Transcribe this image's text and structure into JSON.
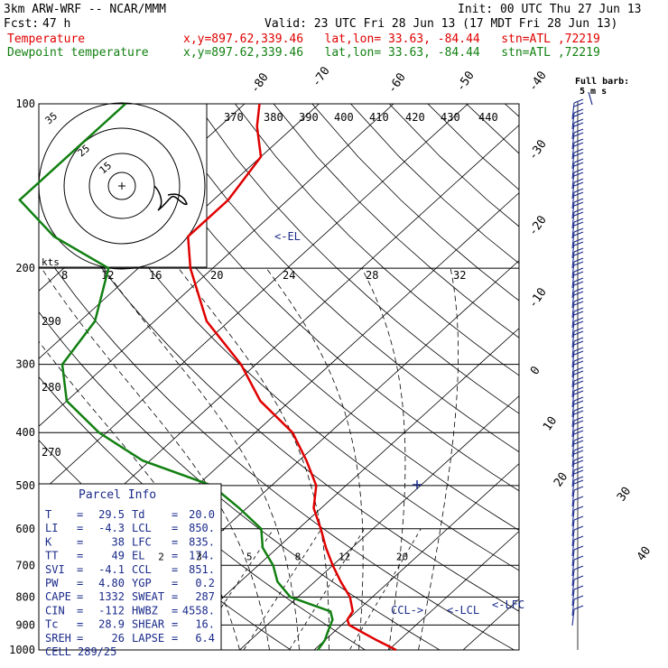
{
  "header": {
    "model": "3km ARW-WRF -- NCAR/MMM",
    "init": "Init: 00 UTC Thu 27 Jun 13",
    "fcst_label": "Fcst:",
    "fcst_value": "47 h",
    "valid": "Valid: 23 UTC Fri 28 Jun 13 (17 MDT Fri 28 Jun 13)",
    "temp_label": "Temperature",
    "dew_label": "Dewpoint temperature",
    "temp_info": "x,y=897.62,339.46   lat,lon= 33.63, -84.44   stn=ATL ,72219",
    "dew_info": "x,y=897.62,339.46   lat,lon= 33.63, -84.44   stn=ATL ,72219"
  },
  "parcel": {
    "title": "Parcel Info",
    "rows": [
      [
        "T",
        "29.5",
        "Td",
        "20.0"
      ],
      [
        "LI",
        "-4.3",
        "LCL",
        "850."
      ],
      [
        "K",
        "38",
        "LFC",
        "835."
      ],
      [
        "TT",
        "49",
        "EL",
        "174."
      ],
      [
        "SVI",
        "-4.1",
        "CCL",
        "851."
      ],
      [
        "PW",
        "4.80",
        "YGP",
        "0.2"
      ],
      [
        "CAPE",
        "1332",
        "SWEAT",
        "287"
      ],
      [
        "CIN",
        "-112",
        "HWBZ",
        "4558."
      ],
      [
        "Tc",
        "28.9",
        "SHEAR",
        "16."
      ],
      [
        "SREH",
        "26",
        "LAPSE",
        "6.4"
      ],
      [
        "CELL",
        "289/25",
        "",
        ""
      ]
    ]
  },
  "barb_legend": {
    "title": "Full barb:",
    "sub": "5 m s"
  },
  "hodograph": {
    "ring_labels": [
      "35",
      "25",
      "15"
    ],
    "axis_label": "kts",
    "speed_labels": [
      "8",
      "12",
      "16",
      "20",
      "24",
      "28",
      "32"
    ]
  },
  "annotations": {
    "el": "<-EL",
    "ccl": "CCL->",
    "lcl": "<-LCL",
    "lfc": "<-LFC"
  },
  "colors": {
    "temperature": "#e00000",
    "dewpoint": "#128012",
    "axes": "#000000",
    "blue": "#1a2a8a"
  },
  "chart_data": {
    "type": "line",
    "title": "",
    "ylabel": "",
    "xlabel": "",
    "pressure_ticks": [
      100,
      200,
      300,
      400,
      500,
      600,
      700,
      800,
      900,
      1000
    ],
    "isotherm_labels": [
      "-80",
      "-70",
      "-60",
      "-50",
      "-40",
      "-30",
      "-20",
      "-10",
      "0",
      "10",
      "20",
      "30",
      "40"
    ],
    "theta_labels": [
      "370",
      "380",
      "390",
      "400",
      "410",
      "420",
      "430",
      "440"
    ],
    "theta_side_labels": [
      "290",
      "280",
      "270"
    ],
    "mixing_ratio_labels": [
      "2",
      "3",
      "5",
      "8",
      "12",
      "20"
    ],
    "series": [
      {
        "name": "Temperature",
        "points": [
          [
            1000,
            31
          ],
          [
            960,
            27
          ],
          [
            930,
            24
          ],
          [
            900,
            21
          ],
          [
            880,
            20
          ],
          [
            850,
            19.5
          ],
          [
            800,
            17
          ],
          [
            750,
            13.5
          ],
          [
            700,
            10
          ],
          [
            650,
            6.5
          ],
          [
            600,
            3
          ],
          [
            550,
            -1
          ],
          [
            500,
            -4
          ],
          [
            450,
            -9
          ],
          [
            400,
            -15
          ],
          [
            350,
            -24
          ],
          [
            300,
            -32
          ],
          [
            250,
            -43
          ],
          [
            200,
            -53
          ],
          [
            175,
            -58
          ],
          [
            150,
            -58
          ],
          [
            125,
            -60
          ],
          [
            110,
            -65
          ],
          [
            100,
            -68
          ]
        ]
      },
      {
        "name": "Dewpoint temperature",
        "points": [
          [
            1000,
            20.5
          ],
          [
            960,
            20
          ],
          [
            920,
            19
          ],
          [
            880,
            18
          ],
          [
            850,
            16.5
          ],
          [
            800,
            9
          ],
          [
            750,
            5
          ],
          [
            700,
            2
          ],
          [
            650,
            -2
          ],
          [
            600,
            -5
          ],
          [
            550,
            -11
          ],
          [
            500,
            -18
          ],
          [
            450,
            -31
          ],
          [
            400,
            -41
          ],
          [
            350,
            -50
          ],
          [
            300,
            -56
          ],
          [
            250,
            -58
          ],
          [
            200,
            -64
          ],
          [
            175,
            -76
          ],
          [
            150,
            -86
          ],
          [
            125,
            -86
          ],
          [
            110,
            -86
          ],
          [
            100,
            -86
          ]
        ]
      }
    ]
  }
}
